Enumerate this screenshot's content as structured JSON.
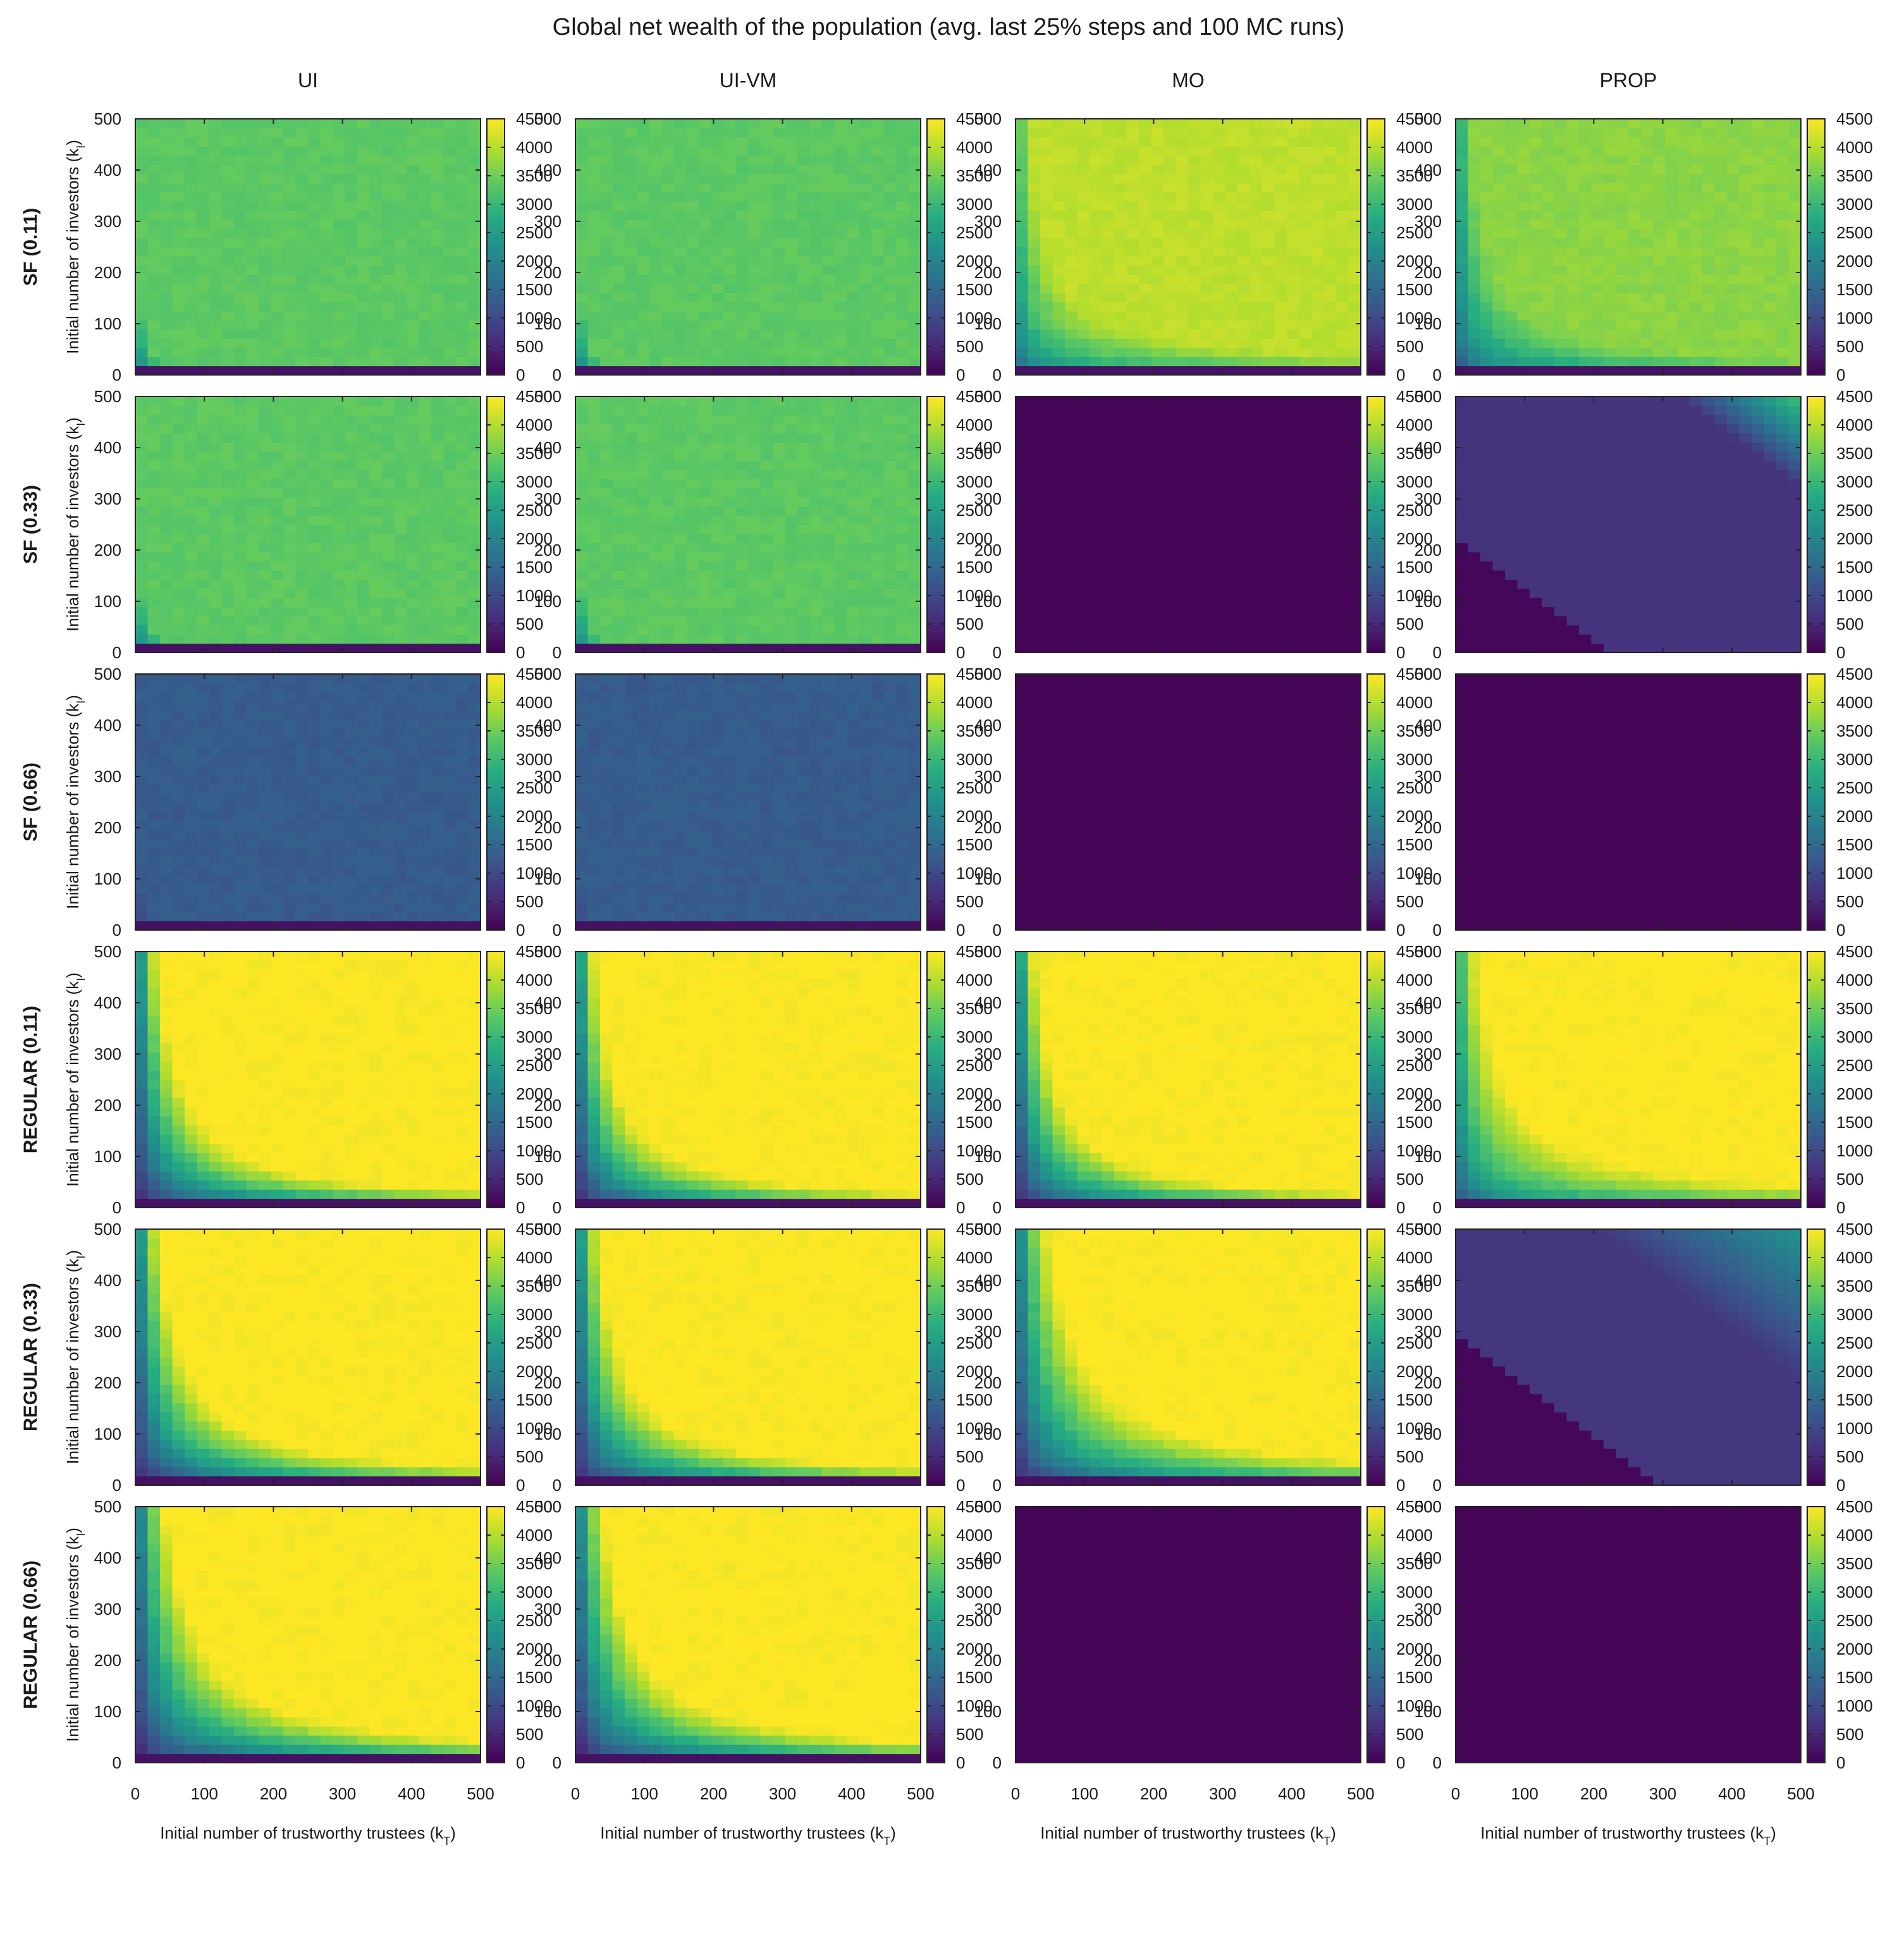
{
  "chart_data": {
    "type": "heatmap",
    "title": "Global net wealth of the population (avg. last 25% steps and 100 MC runs)",
    "columns": [
      "UI",
      "UI-VM",
      "MO",
      "PROP"
    ],
    "rows": [
      "SF (0.11)",
      "SF (0.33)",
      "SF (0.66)",
      "REGULAR (0.11)",
      "REGULAR (0.33)",
      "REGULAR (0.66)"
    ],
    "xlabel": "Initial number of trustworthy trustees (k",
    "xlabel_sub": "T",
    "xlabel_close": ")",
    "ylabel": "Initial number of investors (k",
    "ylabel_sub": "I",
    "ylabel_close": ")",
    "xlim": [
      0,
      500
    ],
    "ylim": [
      0,
      500
    ],
    "x_ticks": [
      "0",
      "100",
      "200",
      "300",
      "400",
      "500"
    ],
    "y_ticks": [
      "0",
      "100",
      "200",
      "300",
      "400",
      "500"
    ],
    "colorbar": {
      "range": [
        0,
        4500
      ],
      "ticks": [
        "0",
        "500",
        "1000",
        "1500",
        "2000",
        "2500",
        "3000",
        "3500",
        "4000",
        "4500"
      ],
      "colormap": "viridis",
      "stops": [
        "#440154",
        "#472d7b",
        "#3b528b",
        "#2c728e",
        "#21918c",
        "#28ae80",
        "#5ec962",
        "#addc30",
        "#fde725"
      ]
    },
    "panels": [
      [
        {
          "pattern": "ramp",
          "plateau": 3350,
          "k": 1200,
          "p": 1.0,
          "s": 0.22
        },
        {
          "pattern": "ramp",
          "plateau": 3350,
          "k": 1200,
          "p": 1.0,
          "s": 0.22
        },
        {
          "pattern": "ramp",
          "plateau": 4050,
          "k": 45000,
          "p": 1.25,
          "s": 0.18
        },
        {
          "pattern": "ramp",
          "plateau": 3700,
          "k": 20000,
          "p": 1.1,
          "s": 0.22
        }
      ],
      [
        {
          "pattern": "ramp",
          "plateau": 3350,
          "k": 1200,
          "p": 1.0,
          "s": 0.22
        },
        {
          "pattern": "ramp",
          "plateau": 3350,
          "k": 1200,
          "p": 1.0,
          "s": 0.22
        },
        {
          "pattern": "uniform",
          "value": 50
        },
        {
          "pattern": "diag",
          "low": 80,
          "mid": 650,
          "high": 3200,
          "a": 220,
          "b": 820
        }
      ],
      [
        {
          "pattern": "ramp",
          "plateau": 1300,
          "k": 800,
          "p": 1.0,
          "s": 0.18
        },
        {
          "pattern": "ramp",
          "plateau": 1300,
          "k": 800,
          "p": 1.0,
          "s": 0.18
        },
        {
          "pattern": "uniform",
          "value": 50
        },
        {
          "pattern": "uniform",
          "value": 50
        }
      ],
      [
        {
          "pattern": "ramp",
          "plateau": 4500,
          "k": 16000,
          "p": 1.0,
          "s": 0.45
        },
        {
          "pattern": "ramp",
          "plateau": 4500,
          "k": 14000,
          "p": 1.0,
          "s": 0.45
        },
        {
          "pattern": "ramp",
          "plateau": 4500,
          "k": 14000,
          "p": 1.0,
          "s": 0.45
        },
        {
          "pattern": "ramp",
          "plateau": 4500,
          "k": 40000,
          "p": 1.15,
          "s": 0.25
        }
      ],
      [
        {
          "pattern": "ramp",
          "plateau": 4500,
          "k": 17000,
          "p": 1.0,
          "s": 0.45
        },
        {
          "pattern": "ramp",
          "plateau": 4500,
          "k": 16000,
          "p": 1.0,
          "s": 0.45
        },
        {
          "pattern": "ramp",
          "plateau": 4500,
          "k": 24000,
          "p": 1.0,
          "s": 0.4
        },
        {
          "pattern": "diag",
          "low": 80,
          "mid": 700,
          "high": 2300,
          "a": 300,
          "b": 700
        }
      ],
      [
        {
          "pattern": "ramp",
          "plateau": 4500,
          "k": 22000,
          "p": 1.0,
          "s": 0.45
        },
        {
          "pattern": "ramp",
          "plateau": 4500,
          "k": 20000,
          "p": 1.0,
          "s": 0.45
        },
        {
          "pattern": "uniform",
          "value": 50
        },
        {
          "pattern": "uniform",
          "value": 50
        }
      ]
    ]
  }
}
